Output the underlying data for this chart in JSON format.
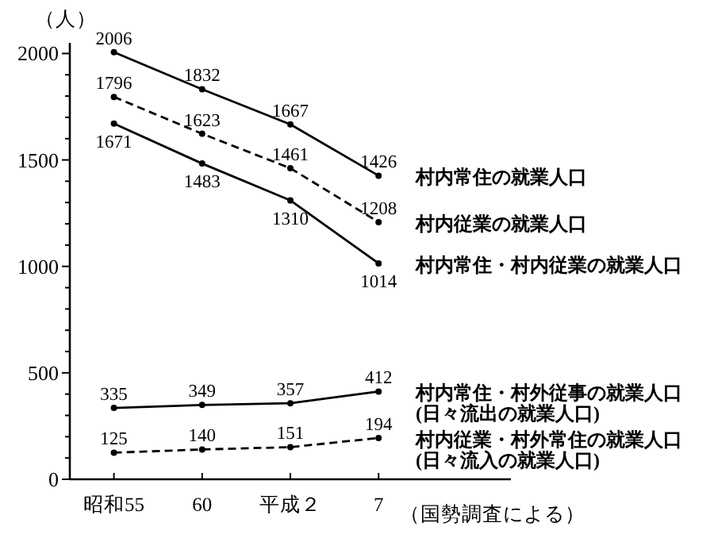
{
  "chart_data": {
    "type": "line",
    "ylabel": "（人）",
    "categories": [
      "昭和55",
      "60",
      "平成２",
      "7"
    ],
    "series": [
      {
        "name": "村内常住の就業人口",
        "color": "#000000",
        "line_style": "solid",
        "values": [
          2006,
          1832,
          1667,
          1426
        ]
      },
      {
        "name": "村内従業の就業人口",
        "color": "#000000",
        "line_style": "dashed",
        "values": [
          1796,
          1623,
          1461,
          1208
        ]
      },
      {
        "name": "村内常住・村内従業の就業人口",
        "color": "#000000",
        "line_style": "solid",
        "values": [
          1671,
          1483,
          1310,
          1014
        ]
      },
      {
        "name": "村内常住・村外従事の就業人口\n(日々流出の就業人口)",
        "color": "#000000",
        "line_style": "solid",
        "values": [
          335,
          349,
          357,
          412
        ]
      },
      {
        "name": "村内従業・村外常住の就業人口\n(日々流入の就業人口)",
        "color": "#000000",
        "line_style": "dashed",
        "values": [
          125,
          140,
          151,
          194
        ]
      }
    ],
    "ylim": [
      0,
      2050
    ],
    "yticks": [
      0,
      {
        "value": 100,
        "label": null
      },
      {
        "value": 200,
        "label": null
      },
      {
        "value": 300,
        "label": null
      },
      {
        "value": 400,
        "label": null
      },
      500,
      {
        "value": 600,
        "label": null
      },
      {
        "value": 700,
        "label": null
      },
      {
        "value": 800,
        "label": null
      },
      {
        "value": 900,
        "label": null
      },
      1000,
      {
        "value": 1100,
        "label": null
      },
      {
        "value": 1200,
        "label": null
      },
      {
        "value": 1300,
        "label": null
      },
      {
        "value": 1400,
        "label": null
      },
      1500,
      {
        "value": 1600,
        "label": null
      },
      {
        "value": 1700,
        "label": null
      },
      {
        "value": 1800,
        "label": null
      },
      {
        "value": 1900,
        "label": null
      },
      2000
    ],
    "data_labels": true,
    "marker": "circle",
    "grid": false,
    "annotations": [
      "（国勢調査による）"
    ]
  }
}
